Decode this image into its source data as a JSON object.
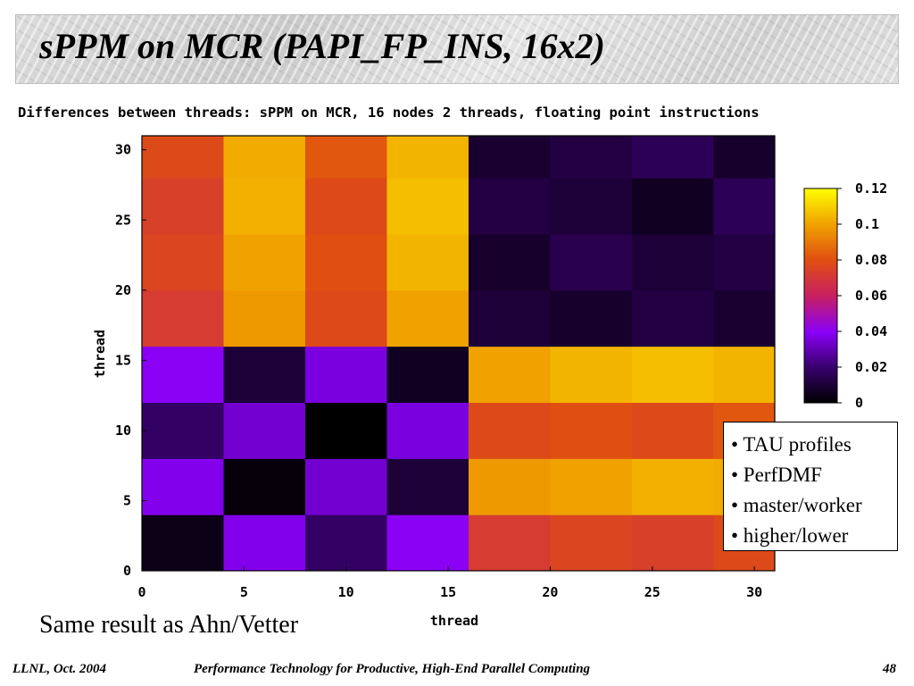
{
  "slide": {
    "title": "sPPM on MCR (PAPI_FP_INS, 16x2)",
    "bullets": [
      "• TAU profiles",
      "• PerfDMF",
      "• master/worker",
      "• higher/lower"
    ],
    "note": "Same result as Ahn/Vetter",
    "footer_left": "LLNL, Oct. 2004",
    "footer_center": "Performance Technology for Productive, High-End Parallel Computing",
    "page_number": "48"
  },
  "chart_data": {
    "type": "heatmap",
    "title": "Differences between threads: sPPM on MCR, 16 nodes 2 threads, floating point instructions",
    "xlabel": "thread",
    "ylabel": "thread",
    "xlim": [
      0,
      31
    ],
    "ylim": [
      0,
      31
    ],
    "x_ticks": [
      "0",
      "5",
      "10",
      "15",
      "20",
      "25",
      "30"
    ],
    "y_ticks": [
      "0",
      "5",
      "10",
      "15",
      "20",
      "25",
      "30"
    ],
    "colorbar_ticks": [
      "0",
      "0.02",
      "0.04",
      "0.06",
      "0.08",
      "0.1",
      "0.12"
    ],
    "colorbar_range": [
      0,
      0.12
    ],
    "grid": false,
    "block_edges": [
      0,
      4,
      8,
      12,
      16,
      20,
      24,
      28,
      31
    ],
    "blocks": [
      [
        0.004,
        0.038,
        0.018,
        0.04,
        0.072,
        0.076,
        0.074,
        0.078
      ],
      [
        0.038,
        0.002,
        0.034,
        0.01,
        0.098,
        0.1,
        0.103,
        0.102
      ],
      [
        0.018,
        0.034,
        0.0,
        0.036,
        0.078,
        0.08,
        0.078,
        0.082
      ],
      [
        0.04,
        0.01,
        0.036,
        0.006,
        0.1,
        0.104,
        0.106,
        0.104
      ],
      [
        0.072,
        0.098,
        0.078,
        0.1,
        0.01,
        0.008,
        0.012,
        0.009
      ],
      [
        0.076,
        0.1,
        0.08,
        0.104,
        0.008,
        0.014,
        0.01,
        0.012
      ],
      [
        0.074,
        0.103,
        0.078,
        0.106,
        0.012,
        0.01,
        0.006,
        0.016
      ],
      [
        0.078,
        0.102,
        0.082,
        0.104,
        0.009,
        0.012,
        0.016,
        0.008
      ]
    ]
  }
}
